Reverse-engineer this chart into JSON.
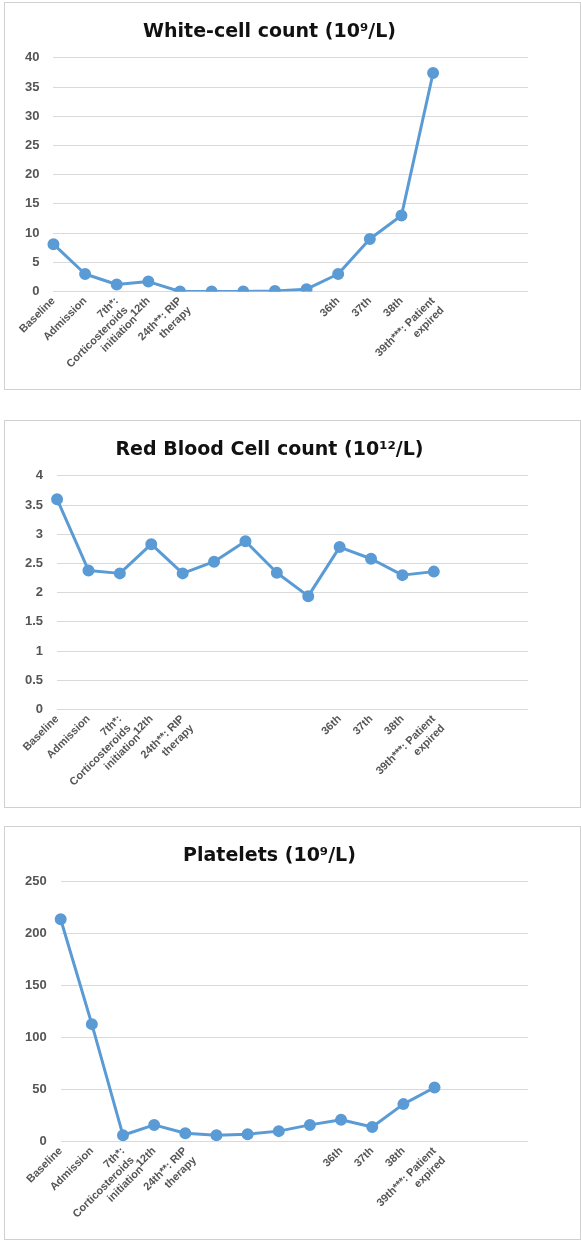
{
  "chart_data": [
    {
      "type": "line",
      "title": "White-cell count (10⁹/L)",
      "categories": [
        "Baseline",
        "Admission",
        "7th*: Corticosteroids initiation",
        "12th",
        "24th**: RIP therapy",
        null,
        null,
        null,
        null,
        "36th",
        "37th",
        "38th",
        "39th***: Patient expired",
        null,
        null,
        null
      ],
      "series": [
        {
          "color": "#5b9bd5",
          "values": [
            8.1,
            3.0,
            1.2,
            1.7,
            0,
            0,
            0,
            0.1,
            0.4,
            3.0,
            9.0,
            13.0,
            37.4,
            null,
            null,
            null
          ]
        }
      ],
      "ylim": [
        0,
        40
      ],
      "yticks": [
        0,
        5,
        10,
        15,
        20,
        25,
        30,
        35,
        40
      ],
      "grid": "y",
      "legend": false,
      "marker": "circle",
      "line_style": "solid"
    },
    {
      "type": "line",
      "title": "Red Blood Cell count (10¹²/L)",
      "categories": [
        "Baseline",
        "Admission",
        "7th*: Corticosteroids initiation",
        "12th",
        "24th**: RIP therapy",
        null,
        null,
        null,
        null,
        "36th",
        "37th",
        "38th",
        "39th***: Patient expired",
        null,
        null,
        null
      ],
      "series": [
        {
          "color": "#5b9bd5",
          "values": [
            3.6,
            2.38,
            2.33,
            2.83,
            2.33,
            2.53,
            2.88,
            2.34,
            1.94,
            2.78,
            2.58,
            2.3,
            2.36,
            null,
            null,
            null
          ]
        }
      ],
      "ylim": [
        0,
        4
      ],
      "yticks": [
        0,
        0.5,
        1,
        1.5,
        2,
        2.5,
        3,
        3.5,
        4
      ],
      "grid": "y",
      "legend": false,
      "marker": "circle",
      "line_style": "solid"
    },
    {
      "type": "line",
      "title": "Platelets (10⁹/L)",
      "categories": [
        "Baseline",
        "Admission",
        "7th*: Corticosteroids initiation",
        "12th",
        "24th**: RIP therapy",
        null,
        null,
        null,
        null,
        "36th",
        "37th",
        "38th",
        "39th***: Patient expired",
        null,
        null,
        null
      ],
      "series": [
        {
          "color": "#5b9bd5",
          "values": [
            214,
            113,
            6,
            16,
            8,
            6,
            7,
            10,
            16,
            21,
            14,
            36,
            52,
            null,
            null,
            null
          ]
        }
      ],
      "ylim": [
        0,
        250
      ],
      "yticks": [
        0,
        50,
        100,
        150,
        200,
        250
      ],
      "grid": "y",
      "legend": false,
      "marker": "circle",
      "line_style": "solid"
    }
  ]
}
